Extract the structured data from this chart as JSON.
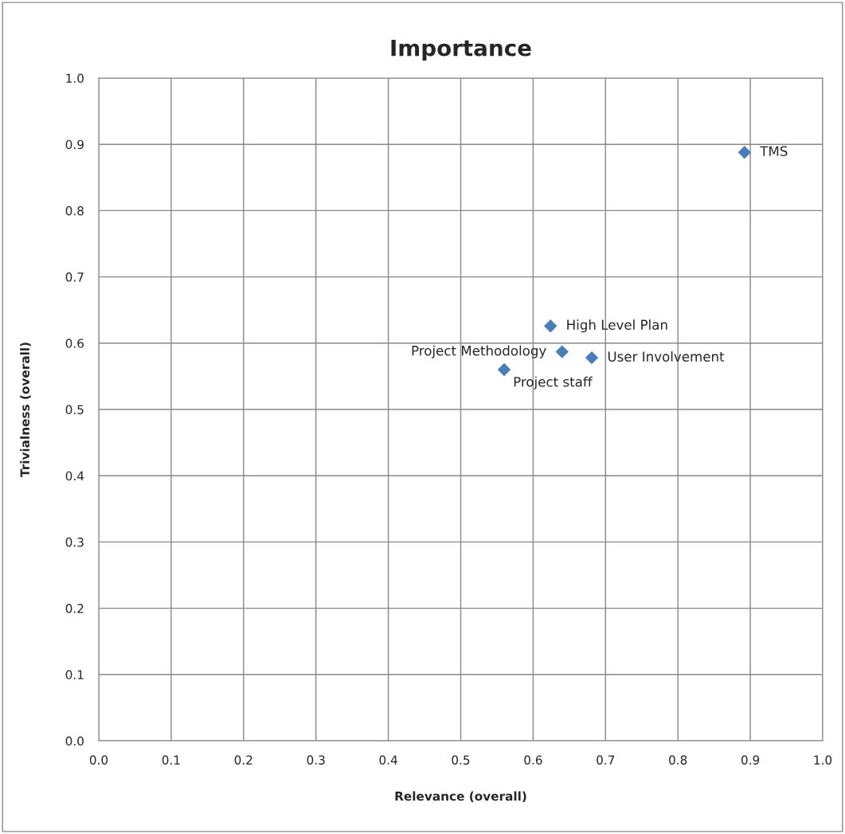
{
  "chart_data": {
    "type": "scatter",
    "title": "Importance",
    "xlabel": "Relevance (overall)",
    "ylabel": "Trivialness (overall)",
    "x": [
      0.892,
      0.624,
      0.64,
      0.681,
      0.56
    ],
    "series": [
      {
        "color": "#4a7ebb",
        "values": [
          0.888,
          0.626,
          0.587,
          0.578,
          0.56
        ]
      }
    ],
    "annotations": [
      {
        "text": "TMS",
        "x": 0.892,
        "y": 0.888
      },
      {
        "text": "High Level Plan",
        "x": 0.624,
        "y": 0.626
      },
      {
        "text": "Project Methodology",
        "x": 0.64,
        "y": 0.587
      },
      {
        "text": "User Involvement",
        "x": 0.681,
        "y": 0.578
      },
      {
        "text": "Project staff",
        "x": 0.56,
        "y": 0.56
      }
    ],
    "xlim": [
      0,
      1
    ],
    "ylim": [
      0,
      1
    ],
    "xticks": [
      {
        "value": 0,
        "label": "0.0"
      },
      {
        "value": 0.1,
        "label": "0.1"
      },
      {
        "value": 0.2,
        "label": "0.2"
      },
      {
        "value": 0.3,
        "label": "0.3"
      },
      {
        "value": 0.4,
        "label": "0.4"
      },
      {
        "value": 0.5,
        "label": "0.5"
      },
      {
        "value": 0.6,
        "label": "0.6"
      },
      {
        "value": 0.7,
        "label": "0.7"
      },
      {
        "value": 0.8,
        "label": "0.8"
      },
      {
        "value": 0.9,
        "label": "0.9"
      },
      {
        "value": 1,
        "label": "1.0"
      }
    ],
    "yticks": [
      {
        "value": 0,
        "label": "0.0"
      },
      {
        "value": 0.1,
        "label": "0.1"
      },
      {
        "value": 0.2,
        "label": "0.2"
      },
      {
        "value": 0.3,
        "label": "0.3"
      },
      {
        "value": 0.4,
        "label": "0.4"
      },
      {
        "value": 0.5,
        "label": "0.5"
      },
      {
        "value": 0.6,
        "label": "0.6"
      },
      {
        "value": 0.7,
        "label": "0.7"
      },
      {
        "value": 0.8,
        "label": "0.8"
      },
      {
        "value": 0.9,
        "label": "0.9"
      },
      {
        "value": 1,
        "label": "1.0"
      }
    ],
    "grid": true,
    "marker": "diamond",
    "legend": false
  }
}
